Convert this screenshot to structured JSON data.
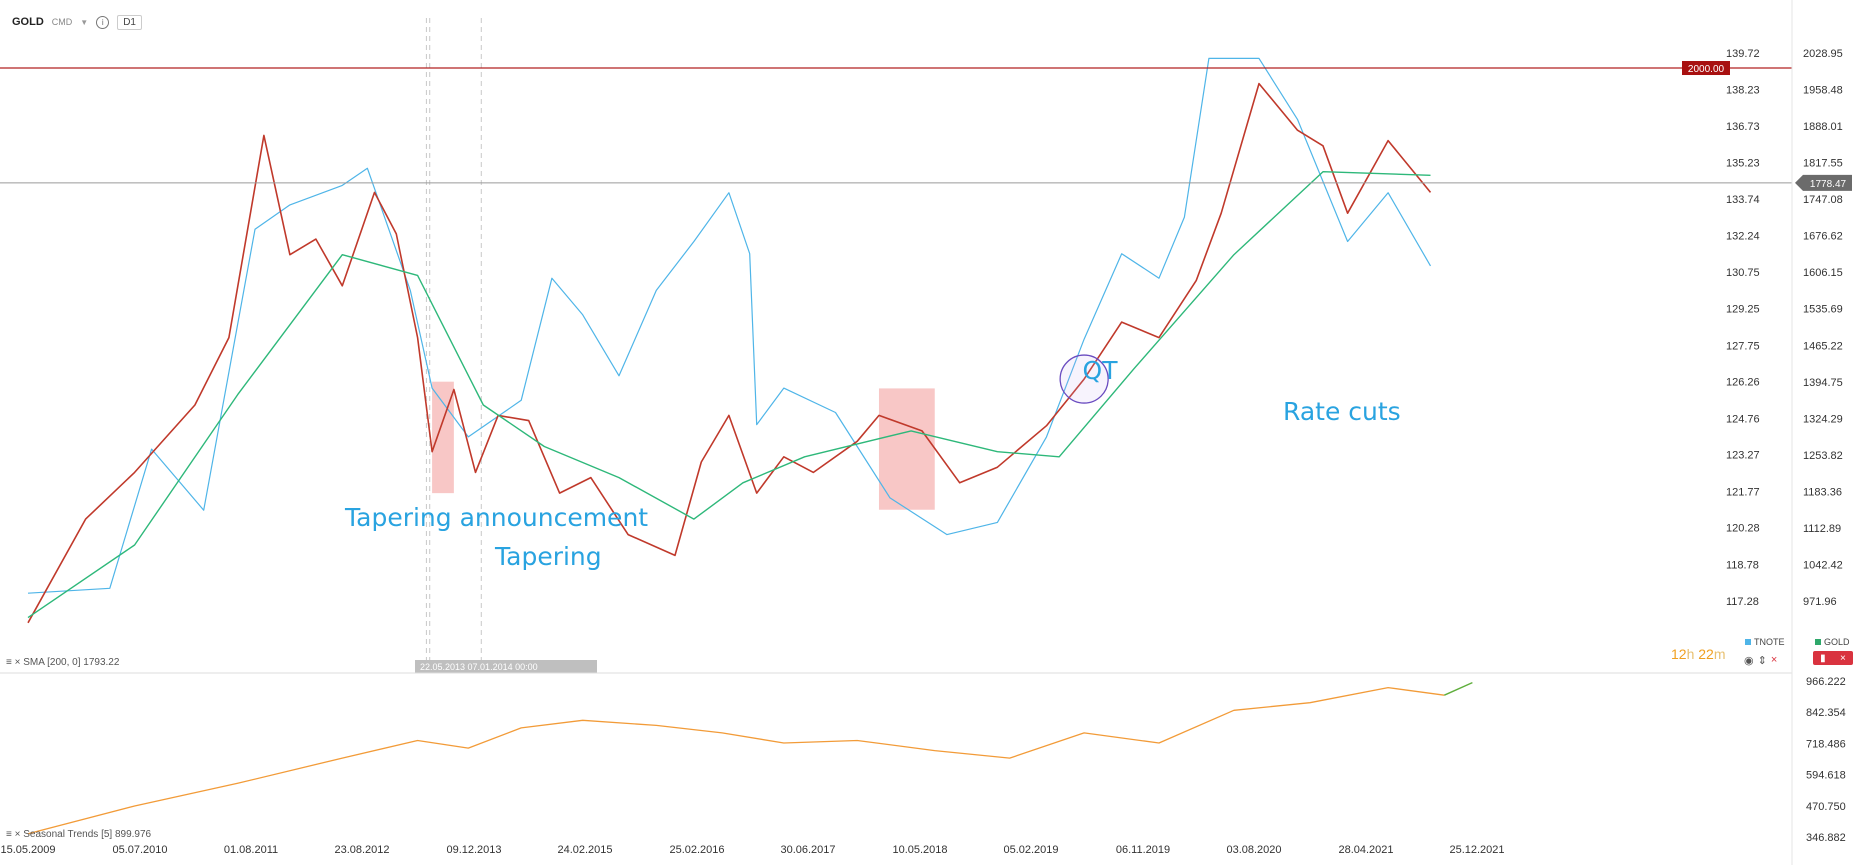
{
  "header": {
    "symbol": "GOLD",
    "source": "CMD",
    "timeframe": "D1"
  },
  "indicators": {
    "sma_label": "SMA [200, 0] 1793.22",
    "seasonal_label": "Seasonal Trends [5] 899.976"
  },
  "countdown": {
    "hours": "12",
    "h_unit": "h",
    "minutes": "22",
    "m_unit": "m"
  },
  "right_legend": {
    "tnote": "TNOTE",
    "gold": "GOLD"
  },
  "markers": {
    "hline_label": "2000.00",
    "last_price_label": "1778.47",
    "vline_dates": "22.05.2013    07.01.2014 00:00"
  },
  "chart_data": [
    {
      "type": "line",
      "title": "",
      "x_tick_labels": [
        "15.05.2009",
        "05.07.2010",
        "01.08.2011",
        "23.08.2012",
        "09.12.2013",
        "24.02.2015",
        "25.02.2016",
        "30.06.2017",
        "10.05.2018",
        "05.02.2019",
        "06.11.2019",
        "03.08.2020",
        "28.04.2021",
        "25.12.2021"
      ],
      "y_right_ticks_gold": [
        2028.95,
        1958.48,
        1888.01,
        1817.55,
        1747.08,
        1676.62,
        1606.15,
        1535.69,
        1465.22,
        1394.75,
        1324.29,
        1253.82,
        1183.36,
        1112.89,
        1042.42,
        971.96
      ],
      "y_left_ticks_tnote": [
        139.72,
        138.23,
        136.73,
        135.23,
        133.74,
        132.24,
        130.75,
        129.25,
        127.75,
        126.26,
        124.76,
        123.27,
        121.77,
        120.28,
        118.78,
        117.28
      ],
      "ylim_gold": [
        935.0,
        2075.0
      ],
      "series": [
        {
          "name": "GOLD",
          "color": "#c0392b",
          "x": [
            "2009-05",
            "2009-12",
            "2010-06",
            "2011-01",
            "2011-05",
            "2011-09",
            "2011-12",
            "2012-03",
            "2012-06",
            "2012-10",
            "2013-01",
            "2013-04",
            "2013-06",
            "2013-09",
            "2013-12",
            "2014-03",
            "2014-07",
            "2014-11",
            "2015-03",
            "2015-07",
            "2015-12",
            "2016-03",
            "2016-07",
            "2016-11",
            "2017-03",
            "2017-07",
            "2017-11",
            "2018-01",
            "2018-05",
            "2018-08",
            "2018-11",
            "2019-03",
            "2019-06",
            "2019-09",
            "2019-12",
            "2020-03",
            "2020-05",
            "2020-08",
            "2020-11",
            "2021-01",
            "2021-03",
            "2021-06",
            "2021-09"
          ],
          "values": [
            930,
            1130,
            1220,
            1350,
            1480,
            1870,
            1640,
            1670,
            1580,
            1760,
            1680,
            1480,
            1260,
            1380,
            1220,
            1330,
            1320,
            1180,
            1210,
            1100,
            1060,
            1240,
            1330,
            1180,
            1250,
            1220,
            1280,
            1330,
            1300,
            1200,
            1230,
            1310,
            1400,
            1510,
            1480,
            1590,
            1720,
            1970,
            1880,
            1850,
            1720,
            1860,
            1760
          ]
        },
        {
          "name": "SMA [200, 0]",
          "color": "#2eb87a",
          "x": [
            "2009-05",
            "2010-06",
            "2011-06",
            "2012-06",
            "2013-04",
            "2014-01",
            "2014-09",
            "2015-06",
            "2016-02",
            "2016-09",
            "2017-06",
            "2018-04",
            "2018-11",
            "2019-04",
            "2019-10",
            "2020-06",
            "2021-01",
            "2021-09"
          ],
          "values": [
            940,
            1080,
            1370,
            1640,
            1600,
            1350,
            1270,
            1210,
            1130,
            1200,
            1250,
            1300,
            1260,
            1250,
            1420,
            1640,
            1800,
            1793
          ]
        },
        {
          "name": "TNOTE",
          "color": "#4fb5e8",
          "x": [
            "2009-05",
            "2010-03",
            "2010-08",
            "2011-02",
            "2011-08",
            "2011-12",
            "2012-06",
            "2012-09",
            "2013-03",
            "2013-06",
            "2013-11",
            "2014-06",
            "2014-10",
            "2015-02",
            "2015-06",
            "2015-10",
            "2016-02",
            "2016-07",
            "2016-10",
            "2016-11",
            "2017-03",
            "2017-09",
            "2018-02",
            "2018-07",
            "2018-11",
            "2019-03",
            "2019-06",
            "2019-09",
            "2019-12",
            "2020-02",
            "2020-04",
            "2020-08",
            "2020-11",
            "2021-03",
            "2021-06",
            "2021-09"
          ],
          "values": [
            117.6,
            117.8,
            123.5,
            121.0,
            132.5,
            133.5,
            134.3,
            135.0,
            130.0,
            126.0,
            124.0,
            125.5,
            130.5,
            129.0,
            126.5,
            130.0,
            132.0,
            134.0,
            131.5,
            124.5,
            126.0,
            125.0,
            121.5,
            120.0,
            120.5,
            124.0,
            128.0,
            131.5,
            130.5,
            133.0,
            139.5,
            139.5,
            137.0,
            132.0,
            134.0,
            131.0
          ]
        }
      ],
      "annotations": [
        "Tapering announcement",
        "Tapering",
        "QT",
        "Rate cuts"
      ],
      "highlight_boxes": [
        {
          "x0": "2013-06",
          "x1": "2013-09",
          "y0": 1180,
          "y1": 1395
        },
        {
          "x0": "2018-01",
          "x1": "2018-06",
          "y0": 1148,
          "y1": 1382
        }
      ],
      "hline": 2000.0,
      "last_price": 1778.47,
      "grid": false
    },
    {
      "type": "line",
      "title": "",
      "y_ticks": [
        966.222,
        842.354,
        718.486,
        594.618,
        470.75,
        346.882
      ],
      "ylim": [
        346.882,
        966.222
      ],
      "series": [
        {
          "name": "Seasonal Trends [5]",
          "color": "#f29b38",
          "x": [
            "2009-05",
            "2010-06",
            "2011-06",
            "2012-06",
            "2013-04",
            "2013-11",
            "2014-06",
            "2015-02",
            "2015-10",
            "2016-06",
            "2017-03",
            "2017-11",
            "2018-06",
            "2018-12",
            "2019-06",
            "2019-12",
            "2020-06",
            "2020-12",
            "2021-06",
            "2021-10"
          ],
          "values": [
            360,
            470,
            560,
            660,
            730,
            700,
            780,
            810,
            790,
            760,
            720,
            730,
            690,
            660,
            760,
            720,
            850,
            880,
            940,
            910
          ]
        },
        {
          "name": "Seasonal Trends [5] forecast",
          "color": "#5fae3c",
          "x": [
            "2021-10",
            "2021-12"
          ],
          "values": [
            910,
            960
          ]
        }
      ]
    }
  ]
}
